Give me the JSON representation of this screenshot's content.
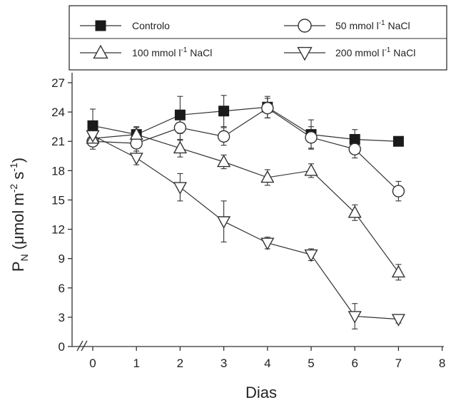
{
  "chart_data": {
    "type": "line",
    "xlabel": "Dias",
    "ylabel": {
      "main": "P",
      "sub": "N",
      "rest": " (μmol m",
      "exp1": "-2",
      "mid": " s",
      "exp2": "-1",
      "end": ")"
    },
    "xlim": [
      0,
      8
    ],
    "ylim": [
      0,
      27
    ],
    "xticks": [
      "0",
      "1",
      "2",
      "3",
      "4",
      "5",
      "6",
      "7",
      "8"
    ],
    "yticks": [
      "0",
      "3",
      "6",
      "9",
      "12",
      "15",
      "18",
      "21",
      "24",
      "27"
    ],
    "x": [
      0,
      1,
      2,
      3,
      4,
      5,
      6,
      7
    ],
    "series": [
      {
        "name": "Controlo",
        "name_parts": {
          "pre": "Controlo",
          "sup": "",
          "post": ""
        },
        "marker": "filled-square",
        "values": [
          22.6,
          21.7,
          23.7,
          24.1,
          24.5,
          21.7,
          21.2,
          21.0
        ],
        "errors": [
          1.7,
          0.8,
          1.9,
          1.6,
          1.1,
          1.5,
          1.0,
          0.4
        ]
      },
      {
        "name": "50 mmol l-1 NaCl",
        "name_parts": {
          "pre": "50 mmol l",
          "sup": "-1",
          "post": " NaCl"
        },
        "marker": "open-circle",
        "values": [
          21.0,
          20.8,
          22.4,
          21.5,
          24.4,
          21.4,
          20.2,
          15.9
        ],
        "errors": [
          0.8,
          0.8,
          1.3,
          0.9,
          1.0,
          1.1,
          0.9,
          1.0
        ]
      },
      {
        "name": "100 mmol l-1 NaCl",
        "name_parts": {
          "pre": "100 mmol l",
          "sup": "-1",
          "post": " NaCl"
        },
        "marker": "open-triangle-up",
        "values": [
          21.3,
          21.7,
          20.3,
          18.9,
          17.3,
          18.0,
          13.7,
          7.6
        ],
        "errors": [
          0.7,
          0.7,
          0.9,
          0.7,
          0.8,
          0.7,
          0.8,
          0.8
        ]
      },
      {
        "name": "200 mmol l-1 NaCl",
        "name_parts": {
          "pre": "200 mmol l",
          "sup": "-1",
          "post": " NaCl"
        },
        "marker": "open-triangle-down",
        "values": [
          21.6,
          19.3,
          16.3,
          12.8,
          10.6,
          9.4,
          3.1,
          2.8
        ],
        "errors": [
          0.6,
          0.7,
          1.4,
          2.1,
          0.6,
          0.6,
          1.3,
          0.4
        ]
      }
    ],
    "legend": "top",
    "grid": false,
    "axis_break": "x-origin"
  },
  "colors": {
    "line": "#333333",
    "marker_fill": "#1a1a1a",
    "background": "#ffffff"
  }
}
